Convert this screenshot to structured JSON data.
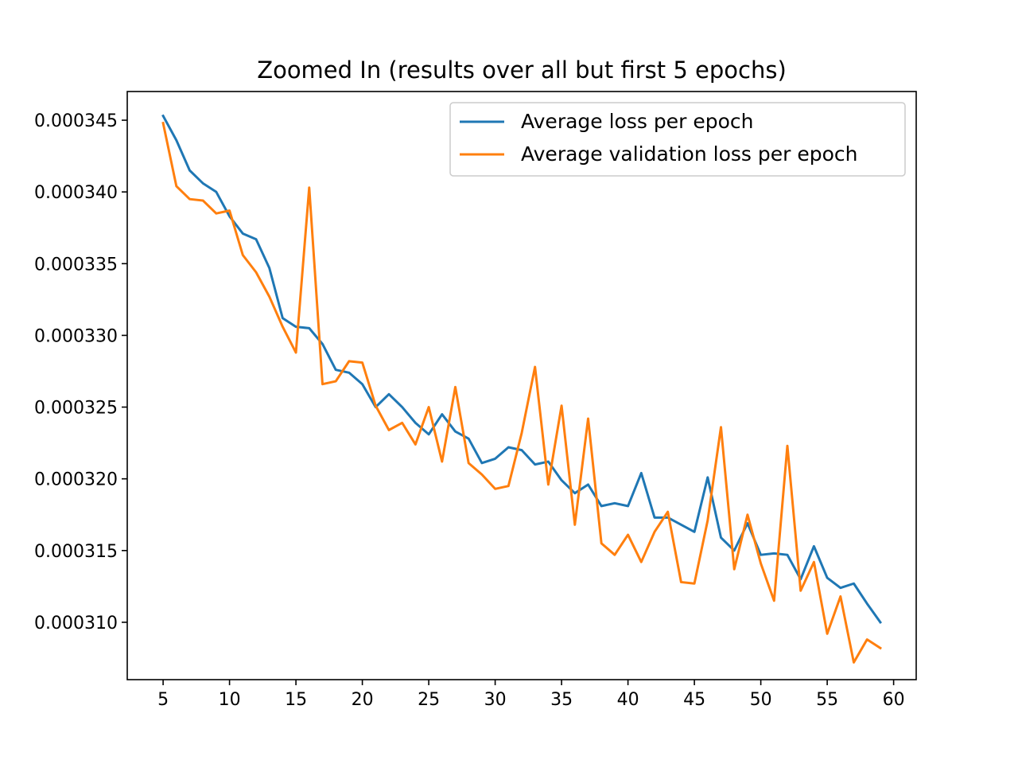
{
  "chart_data": {
    "type": "line",
    "title": "Zoomed In (results over all but first 5 epochs)",
    "xlabel": "",
    "ylabel": "",
    "xlim": [
      2.3,
      61.7
    ],
    "ylim": [
      0.000306,
      0.000347
    ],
    "x_ticks": [
      5,
      10,
      15,
      20,
      25,
      30,
      35,
      40,
      45,
      50,
      55,
      60
    ],
    "y_ticks": [
      0.00031,
      0.000315,
      0.00032,
      0.000325,
      0.00033,
      0.000335,
      0.00034,
      0.000345
    ],
    "y_tick_labels": [
      "0.000310",
      "0.000315",
      "0.000320",
      "0.000325",
      "0.000330",
      "0.000335",
      "0.000340",
      "0.000345"
    ],
    "grid": false,
    "legend_position": "upper-right",
    "x": [
      5,
      6,
      7,
      8,
      9,
      10,
      11,
      12,
      13,
      14,
      15,
      16,
      17,
      18,
      19,
      20,
      21,
      22,
      23,
      24,
      25,
      26,
      27,
      28,
      29,
      30,
      31,
      32,
      33,
      34,
      35,
      36,
      37,
      38,
      39,
      40,
      41,
      42,
      43,
      44,
      45,
      46,
      47,
      48,
      49,
      50,
      51,
      52,
      53,
      54,
      55,
      56,
      57,
      58,
      59
    ],
    "series": [
      {
        "name": "Average loss per epoch",
        "color": "#1f77b4",
        "values": [
          0.0003453,
          0.0003436,
          0.0003415,
          0.0003406,
          0.00034,
          0.0003383,
          0.0003371,
          0.0003367,
          0.0003347,
          0.0003312,
          0.0003306,
          0.0003305,
          0.0003294,
          0.0003276,
          0.0003274,
          0.0003266,
          0.000325,
          0.0003259,
          0.000325,
          0.0003239,
          0.0003231,
          0.0003245,
          0.0003233,
          0.0003228,
          0.0003211,
          0.0003214,
          0.0003222,
          0.000322,
          0.000321,
          0.0003212,
          0.0003199,
          0.000319,
          0.0003196,
          0.0003181,
          0.0003183,
          0.0003181,
          0.0003204,
          0.0003173,
          0.0003173,
          0.0003168,
          0.0003163,
          0.0003201,
          0.0003159,
          0.000315,
          0.0003169,
          0.0003147,
          0.0003148,
          0.0003147,
          0.000313,
          0.0003153,
          0.0003131,
          0.0003124,
          0.0003127,
          0.0003113,
          0.00031
        ]
      },
      {
        "name": "Average validation loss per epoch",
        "color": "#ff7f0e",
        "values": [
          0.0003448,
          0.0003404,
          0.0003395,
          0.0003394,
          0.0003385,
          0.0003387,
          0.0003356,
          0.0003344,
          0.0003327,
          0.0003306,
          0.0003288,
          0.0003403,
          0.0003266,
          0.0003268,
          0.0003282,
          0.0003281,
          0.0003251,
          0.0003234,
          0.0003239,
          0.0003224,
          0.000325,
          0.0003212,
          0.0003264,
          0.0003211,
          0.0003203,
          0.0003193,
          0.0003195,
          0.0003232,
          0.0003278,
          0.0003196,
          0.0003251,
          0.0003168,
          0.0003242,
          0.0003155,
          0.0003147,
          0.0003161,
          0.0003142,
          0.0003163,
          0.0003177,
          0.0003128,
          0.0003127,
          0.0003171,
          0.0003236,
          0.0003137,
          0.0003175,
          0.0003141,
          0.0003115,
          0.0003223,
          0.0003122,
          0.0003142,
          0.0003092,
          0.0003118,
          0.0003072,
          0.0003088,
          0.0003082
        ]
      }
    ]
  }
}
